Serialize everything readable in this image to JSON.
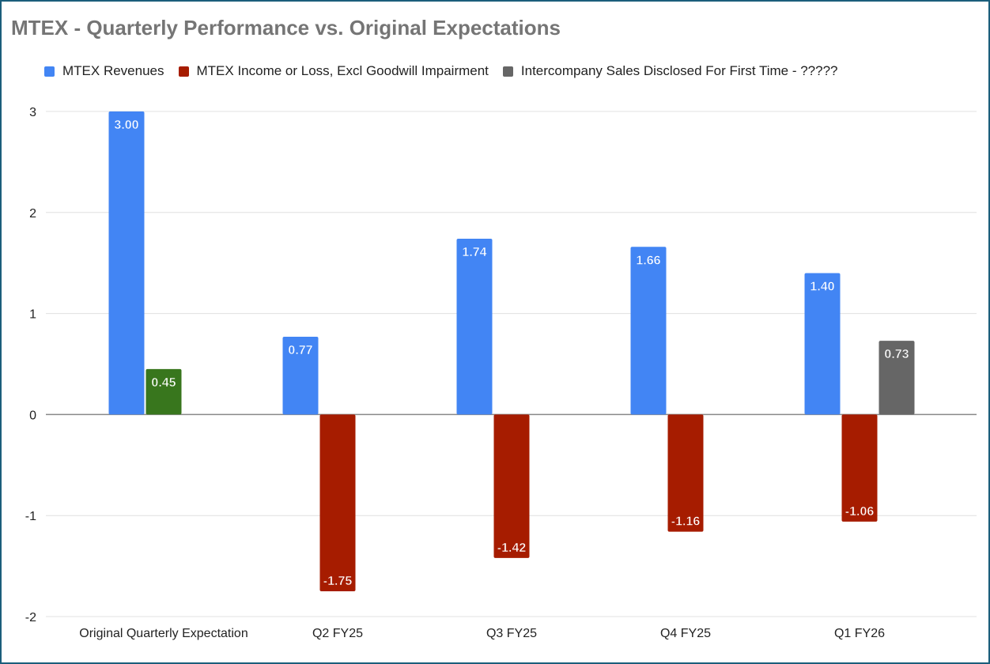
{
  "chart_data": {
    "type": "bar",
    "title": "MTEX - Quarterly Performance vs. Original Expectations",
    "categories": [
      "Original Quarterly Expectation",
      "Q2 FY25",
      "Q3 FY25",
      "Q4 FY25",
      "Q1 FY26"
    ],
    "series": [
      {
        "name": "MTEX Revenues",
        "color": "#4285f4",
        "values": [
          3.0,
          0.77,
          1.74,
          1.66,
          1.4
        ]
      },
      {
        "name": "MTEX Income or Loss, Excl Goodwill Impairment",
        "color": "#a61c00",
        "point_colors": [
          "#38761d",
          null,
          null,
          null,
          null
        ],
        "values": [
          0.45,
          -1.75,
          -1.42,
          -1.16,
          -1.06
        ]
      },
      {
        "name": "Intercompany Sales Disclosed For First Time - ?????",
        "color": "#666666",
        "values": [
          null,
          null,
          null,
          null,
          0.73
        ]
      }
    ],
    "ylim": [
      -2,
      3
    ],
    "yticks": [
      3,
      2,
      1,
      0,
      -1,
      -2
    ],
    "xlabel": "",
    "ylabel": "",
    "grid": true,
    "legend": "top-left",
    "data_labels": true
  }
}
